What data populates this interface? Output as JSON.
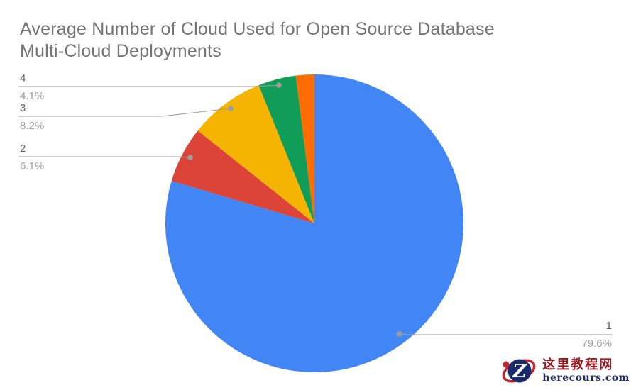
{
  "chart_data": {
    "type": "pie",
    "title": "Average Number of Cloud Used for Open Source Database\nMulti-Cloud Deployments",
    "unit": "percent",
    "direction": "clockwise",
    "start_angle_deg": 0,
    "legend_position": "callout-labels",
    "grid": false,
    "slices": [
      {
        "label": "1",
        "value": 79.6,
        "display_pct": "79.6%",
        "color": "#4285F4"
      },
      {
        "label": "2",
        "value": 6.1,
        "display_pct": "6.1%",
        "color": "#DB4437"
      },
      {
        "label": "3",
        "value": 8.2,
        "display_pct": "8.2%",
        "color": "#F4B400"
      },
      {
        "label": "4",
        "value": 4.1,
        "display_pct": "4.1%",
        "color": "#0F9D58"
      },
      {
        "label": "",
        "value": 2.0,
        "display_pct": "",
        "color": "#FF6D00"
      }
    ],
    "colors": {
      "title": "#757575",
      "slice_label": "#616161",
      "slice_pct": "#9e9e9e",
      "leader_line": "#9e9e9e",
      "leader_dot": "#9e9e9e",
      "background": "#ffffff"
    }
  },
  "watermark": {
    "brand_text": "这里教程网",
    "brand_domain": "herecours.com",
    "logo_letter": "Z",
    "colors": {
      "brand_text": "#9a1b20",
      "domain_text": "#1b2a6b",
      "swoosh": "#c1272d",
      "badge": "#1b2a6b",
      "letter": "#ffffff"
    }
  }
}
